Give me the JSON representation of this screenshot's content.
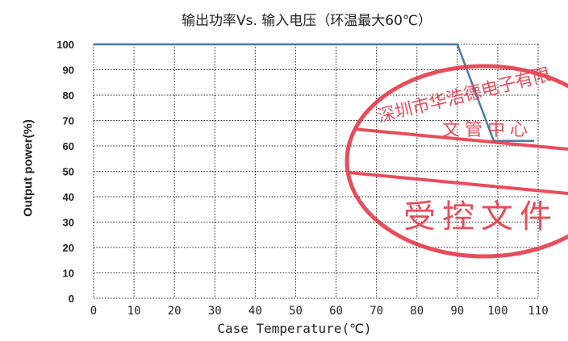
{
  "chart_data": {
    "type": "line",
    "title": "输出功率Vs. 输入电压（环温最大60℃）",
    "xlabel": "Case Temperature(℃)",
    "ylabel": "Output power(%)",
    "xlim": [
      0,
      110
    ],
    "ylim": [
      0,
      100
    ],
    "x_ticks": [
      "0",
      "10",
      "20",
      "30",
      "40",
      "50",
      "60",
      "70",
      "80",
      "90",
      "100",
      "110"
    ],
    "y_ticks": [
      "0",
      "10",
      "20",
      "30",
      "40",
      "50",
      "60",
      "70",
      "80",
      "90",
      "100"
    ],
    "grid": true,
    "grid_style": "dotted",
    "series": [
      {
        "x": [
          0,
          90,
          99,
          109
        ],
        "values": [
          100,
          100,
          62,
          62
        ]
      }
    ],
    "colors": {
      "line": "#4a79a5",
      "grid": "#222222",
      "stamp": "#e53a4a"
    }
  },
  "stamp": {
    "line1": "深圳市华浩德电子有限",
    "line2": "文管中心",
    "line3": "受控文件"
  }
}
